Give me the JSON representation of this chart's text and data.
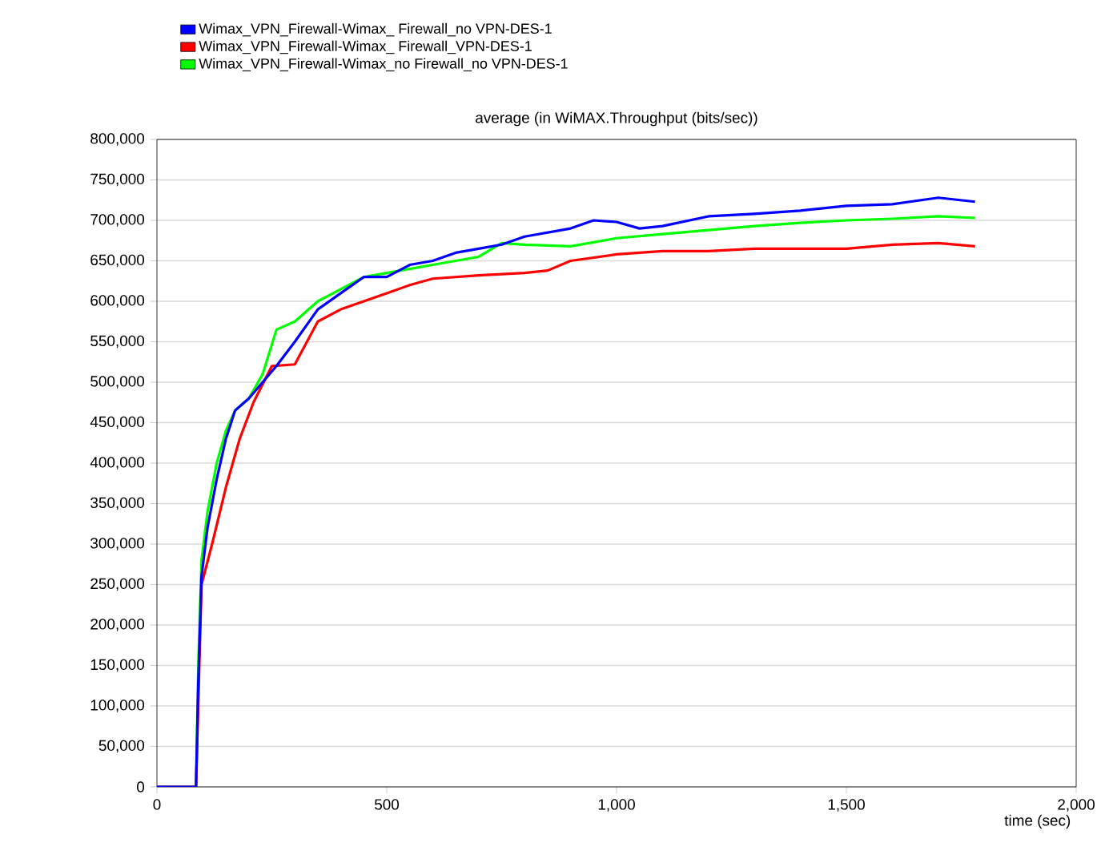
{
  "chart_data": {
    "type": "line",
    "title": "average (in WiMAX.Throughput (bits/sec))",
    "xlabel": "time (sec)",
    "legend": "top",
    "grid": "y",
    "marker": "none",
    "line_style": "solid",
    "xlim": [
      0,
      2000
    ],
    "xticks": [
      0,
      500,
      {
        "value": 1000,
        "label": "1,000"
      },
      {
        "value": 1500,
        "label": "1,500"
      },
      {
        "value": 2000,
        "label": "2,000"
      }
    ],
    "ylim": [
      0,
      800000
    ],
    "yticks": [
      0,
      {
        "value": 50000,
        "label": "50,000"
      },
      {
        "value": 100000,
        "label": "100,000"
      },
      {
        "value": 150000,
        "label": "150,000"
      },
      {
        "value": 200000,
        "label": "200,000"
      },
      {
        "value": 250000,
        "label": "250,000"
      },
      {
        "value": 300000,
        "label": "300,000"
      },
      {
        "value": 350000,
        "label": "350,000"
      },
      {
        "value": 400000,
        "label": "400,000"
      },
      {
        "value": 450000,
        "label": "450,000"
      },
      {
        "value": 500000,
        "label": "500,000"
      },
      {
        "value": 550000,
        "label": "550,000"
      },
      {
        "value": 600000,
        "label": "600,000"
      },
      {
        "value": 650000,
        "label": "650,000"
      },
      {
        "value": 700000,
        "label": "700,000"
      },
      {
        "value": 750000,
        "label": "750,000"
      },
      {
        "value": 800000,
        "label": "800,000"
      }
    ],
    "series": [
      {
        "name": "Wimax_VPN_Firewall-Wimax_ Firewall_no VPN-DES-1",
        "color": "#0000ff",
        "x": [
          0,
          85,
          90,
          97,
          110,
          130,
          150,
          170,
          200,
          230,
          260,
          300,
          350,
          400,
          450,
          500,
          550,
          600,
          650,
          700,
          750,
          800,
          900,
          950,
          1000,
          1050,
          1100,
          1200,
          1300,
          1400,
          1500,
          1600,
          1700,
          1780
        ],
        "values": [
          0,
          0,
          130000,
          260000,
          320000,
          380000,
          430000,
          465000,
          480000,
          500000,
          520000,
          550000,
          590000,
          610000,
          630000,
          630000,
          645000,
          650000,
          660000,
          665000,
          670000,
          680000,
          690000,
          700000,
          698000,
          690000,
          693000,
          705000,
          708000,
          712000,
          718000,
          720000,
          728000,
          723000
        ]
      },
      {
        "name": "Wimax_VPN_Firewall-Wimax_ Firewall_VPN-DES-1",
        "color": "#ff0000",
        "x": [
          0,
          85,
          90,
          97,
          120,
          150,
          180,
          210,
          250,
          300,
          350,
          400,
          450,
          500,
          550,
          600,
          700,
          800,
          850,
          900,
          1000,
          1100,
          1200,
          1300,
          1400,
          1500,
          1600,
          1700,
          1780
        ],
        "values": [
          0,
          0,
          null,
          250000,
          300000,
          370000,
          430000,
          475000,
          520000,
          522000,
          575000,
          590000,
          600000,
          610000,
          620000,
          628000,
          632000,
          635000,
          638000,
          650000,
          658000,
          662000,
          662000,
          665000,
          665000,
          665000,
          670000,
          672000,
          668000
        ]
      },
      {
        "name": "Wimax_VPN_Firewall-Wimax_no Firewall_no VPN-DES-1",
        "color": "#00ff00",
        "x": [
          0,
          85,
          90,
          97,
          110,
          130,
          150,
          170,
          200,
          230,
          260,
          300,
          350,
          400,
          450,
          500,
          550,
          600,
          650,
          700,
          750,
          800,
          900,
          1000,
          1100,
          1200,
          1300,
          1400,
          1500,
          1600,
          1700,
          1780
        ],
        "values": [
          0,
          0,
          150000,
          280000,
          340000,
          400000,
          440000,
          465000,
          480000,
          510000,
          565000,
          575000,
          600000,
          615000,
          630000,
          635000,
          640000,
          645000,
          650000,
          655000,
          672000,
          670000,
          668000,
          678000,
          683000,
          688000,
          693000,
          697000,
          700000,
          702000,
          705000,
          703000
        ]
      }
    ]
  }
}
